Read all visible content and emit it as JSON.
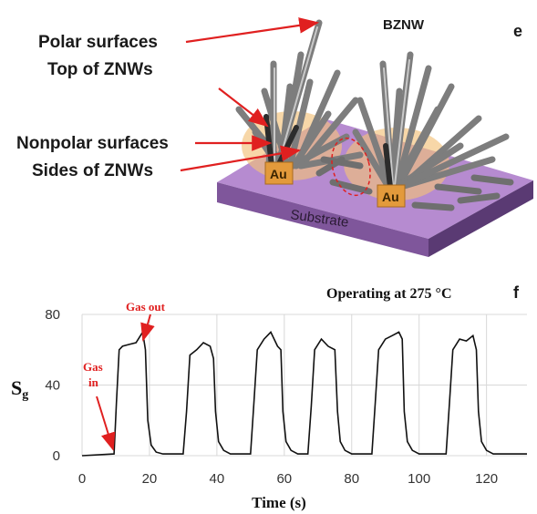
{
  "panel_e": {
    "letter": "e",
    "labels": {
      "polar_surfaces": "Polar surfaces",
      "top_of_znws": "Top of ZNWs",
      "nonpolar_surfaces": "Nonpolar surfaces",
      "sides_of_znws": "Sides of ZNWs",
      "bznw": "BZNW",
      "au_left": "Au",
      "au_right": "Au",
      "substrate": "Substrate"
    },
    "colors": {
      "substrate_top": "#b07fc8",
      "substrate_side": "#7a4f93",
      "gold": "#e9a94a",
      "wire": "#8a8a8a",
      "arrow": "#e02020"
    }
  },
  "panel_f": {
    "letter": "f",
    "operating_text": "Operating at 275 °C",
    "gas_out": "Gas out",
    "gas_in_line1": "Gas",
    "gas_in_line2": "in",
    "annotation_color": "#e02020"
  },
  "chart_data": {
    "type": "line",
    "title": "Operating at 275 °C",
    "xlabel": "Time (s)",
    "ylabel": "Sg",
    "xlim": [
      0,
      132
    ],
    "ylim": [
      0,
      80
    ],
    "x_ticks": [
      0,
      20,
      40,
      60,
      80,
      100,
      120
    ],
    "y_ticks": [
      0,
      40,
      80
    ],
    "grid": "vertical and horizontal",
    "series": [
      {
        "x": [
          0,
          9.5,
          10.2,
          11,
          12,
          14,
          16,
          18,
          18.8,
          19.5,
          20.5,
          22,
          24,
          30,
          31,
          32,
          34,
          36,
          38,
          39,
          39.6,
          40.5,
          42,
          44,
          50,
          51,
          52,
          54,
          56,
          58,
          59,
          59.6,
          60.5,
          62,
          64,
          67,
          68,
          69,
          71,
          73,
          75,
          75.8,
          76.6,
          78,
          80,
          86,
          87,
          88,
          90,
          92,
          94,
          95,
          95.6,
          96.5,
          98,
          100,
          108,
          109,
          110,
          112,
          114,
          116,
          117,
          117.6,
          118.5,
          120,
          122,
          132
        ],
        "y": [
          0,
          1,
          30,
          60,
          62,
          63,
          64,
          70,
          60,
          20,
          6,
          2,
          1,
          1,
          25,
          57,
          60,
          64,
          62,
          55,
          25,
          8,
          3,
          1,
          1,
          30,
          60,
          66,
          70,
          62,
          60,
          25,
          8,
          3,
          1,
          1,
          28,
          60,
          66,
          62,
          60,
          25,
          8,
          3,
          1,
          1,
          30,
          60,
          66,
          68,
          70,
          66,
          25,
          8,
          3,
          1,
          1,
          30,
          60,
          66,
          65,
          68,
          60,
          25,
          8,
          3,
          1,
          1
        ]
      }
    ],
    "color": "#111111"
  }
}
